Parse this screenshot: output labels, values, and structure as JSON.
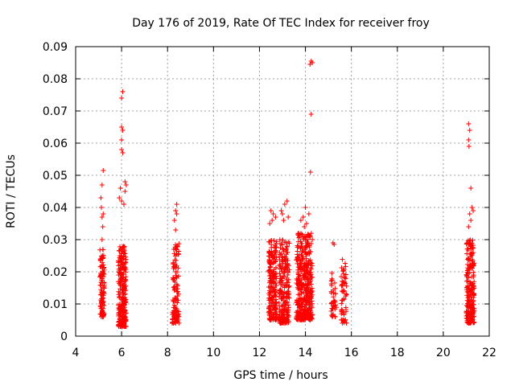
{
  "chart_data": {
    "type": "scatter",
    "title": "Day 176 of 2019, Rate Of TEC Index for receiver froy",
    "xlabel": "GPS time / hours",
    "ylabel": "ROTI / TECUs",
    "xlim": [
      4,
      22
    ],
    "ylim": [
      0,
      0.09
    ],
    "grid": true,
    "marker": "+",
    "marker_color": "#ff0000",
    "xticks": [
      4,
      6,
      8,
      10,
      12,
      14,
      16,
      18,
      20,
      22
    ],
    "xtick_labels": [
      "4",
      "6",
      "8",
      "10",
      "12",
      "14",
      "16",
      "18",
      "20",
      "22"
    ],
    "yticks": [
      0,
      0.01,
      0.02,
      0.03,
      0.04,
      0.05,
      0.06,
      0.07,
      0.08,
      0.09
    ],
    "ytick_labels": [
      "0",
      "0.01",
      "0.02",
      "0.03",
      "0.04",
      "0.05",
      "0.06",
      "0.07",
      "0.08",
      "0.09"
    ],
    "clusters": [
      {
        "x": [
          5.05,
          5.25
        ],
        "y_range": [
          0.006,
          0.027
        ],
        "n": 110,
        "outliers": [
          [
            5.2,
            0.0515
          ],
          [
            5.15,
            0.047
          ],
          [
            5.1,
            0.043
          ],
          [
            5.12,
            0.04
          ],
          [
            5.2,
            0.038
          ],
          [
            5.15,
            0.037
          ],
          [
            5.18,
            0.034
          ],
          [
            5.15,
            0.03
          ]
        ]
      },
      {
        "x": [
          5.85,
          6.2
        ],
        "y_range": [
          0.003,
          0.028
        ],
        "n": 260,
        "outliers": [
          [
            6.05,
            0.076
          ],
          [
            6.0,
            0.074
          ],
          [
            6.0,
            0.065
          ],
          [
            6.05,
            0.064
          ],
          [
            6.0,
            0.061
          ],
          [
            6.0,
            0.058
          ],
          [
            6.05,
            0.057
          ],
          [
            6.15,
            0.048
          ],
          [
            6.2,
            0.047
          ],
          [
            5.95,
            0.046
          ],
          [
            6.15,
            0.045
          ],
          [
            5.9,
            0.043
          ],
          [
            6.0,
            0.042
          ],
          [
            6.1,
            0.041
          ]
        ]
      },
      {
        "x": [
          8.2,
          8.5
        ],
        "y_range": [
          0.004,
          0.029
        ],
        "n": 120,
        "outliers": [
          [
            8.4,
            0.041
          ],
          [
            8.35,
            0.039
          ],
          [
            8.4,
            0.038
          ],
          [
            8.3,
            0.036
          ],
          [
            8.35,
            0.033
          ]
        ]
      },
      {
        "x": [
          12.4,
          12.75
        ],
        "y_range": [
          0.005,
          0.03
        ],
        "n": 220,
        "outliers": [
          [
            12.5,
            0.039
          ],
          [
            12.6,
            0.038
          ],
          [
            12.7,
            0.037
          ],
          [
            12.55,
            0.036
          ],
          [
            12.45,
            0.035
          ]
        ]
      },
      {
        "x": [
          12.85,
          13.3
        ],
        "y_range": [
          0.004,
          0.03
        ],
        "n": 240,
        "outliers": [
          [
            13.2,
            0.042
          ],
          [
            13.1,
            0.041
          ],
          [
            12.95,
            0.039
          ],
          [
            13.0,
            0.038
          ],
          [
            13.25,
            0.037
          ],
          [
            13.05,
            0.036
          ]
        ]
      },
      {
        "x": [
          13.6,
          14.3
        ],
        "y_range": [
          0.005,
          0.032
        ],
        "n": 420,
        "outliers": [
          [
            14.25,
            0.0855
          ],
          [
            14.2,
            0.0845
          ],
          [
            14.3,
            0.085
          ],
          [
            14.25,
            0.069
          ],
          [
            14.22,
            0.051
          ],
          [
            14.0,
            0.04
          ],
          [
            14.15,
            0.038
          ],
          [
            13.9,
            0.037
          ],
          [
            13.8,
            0.036
          ],
          [
            14.05,
            0.035
          ],
          [
            13.95,
            0.034
          ]
        ]
      },
      {
        "x": [
          15.1,
          15.35
        ],
        "y_range": [
          0.006,
          0.02
        ],
        "n": 40,
        "outliers": [
          [
            15.2,
            0.029
          ],
          [
            15.25,
            0.0285
          ]
        ]
      },
      {
        "x": [
          15.55,
          15.8
        ],
        "y_range": [
          0.004,
          0.024
        ],
        "n": 60,
        "outliers": []
      },
      {
        "x": [
          21.0,
          21.35
        ],
        "y_range": [
          0.004,
          0.03
        ],
        "n": 220,
        "outliers": [
          [
            21.1,
            0.066
          ],
          [
            21.15,
            0.064
          ],
          [
            21.1,
            0.061
          ],
          [
            21.12,
            0.059
          ],
          [
            21.2,
            0.046
          ],
          [
            21.25,
            0.04
          ],
          [
            21.3,
            0.039
          ],
          [
            21.15,
            0.038
          ],
          [
            21.2,
            0.036
          ],
          [
            21.1,
            0.034
          ]
        ]
      }
    ]
  }
}
